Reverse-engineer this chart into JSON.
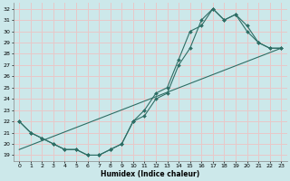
{
  "xlabel": "Humidex (Indice chaleur)",
  "background_color": "#cce8ea",
  "grid_color": "#e8c8c8",
  "line_color": "#2e6e65",
  "xlim": [
    -0.5,
    23.5
  ],
  "ylim": [
    18.5,
    32.5
  ],
  "x_ticks": [
    0,
    1,
    2,
    3,
    4,
    5,
    6,
    7,
    8,
    9,
    10,
    11,
    12,
    13,
    14,
    15,
    16,
    17,
    18,
    19,
    20,
    21,
    22,
    23
  ],
  "y_ticks": [
    19,
    20,
    21,
    22,
    23,
    24,
    25,
    26,
    27,
    28,
    29,
    30,
    31,
    32
  ],
  "curve1_x": [
    0,
    1,
    2,
    3,
    4,
    5,
    6,
    7,
    8,
    9,
    10,
    11,
    12,
    13,
    14,
    15,
    16,
    17,
    18,
    19,
    20,
    21,
    22,
    23
  ],
  "curve1_y": [
    22,
    21,
    20.5,
    20,
    19.5,
    19.5,
    19,
    19,
    19.5,
    20,
    22,
    23,
    24.5,
    25,
    27.5,
    30,
    30.5,
    32,
    31,
    31.5,
    30,
    29,
    28.5,
    28.5
  ],
  "curve2_x": [
    0,
    1,
    2,
    3,
    4,
    5,
    6,
    7,
    8,
    9,
    10,
    11,
    12,
    13,
    14,
    15,
    16,
    17,
    18,
    19,
    20,
    21,
    22,
    23
  ],
  "curve2_y": [
    22,
    21,
    20.5,
    20,
    19.5,
    19.5,
    19,
    19,
    19.5,
    20,
    22,
    22.5,
    24,
    24.5,
    27,
    28.5,
    31,
    32,
    31,
    31.5,
    30.5,
    29,
    28.5,
    28.5
  ],
  "line3_x": [
    0,
    23
  ],
  "line3_y": [
    19.5,
    28.5
  ]
}
